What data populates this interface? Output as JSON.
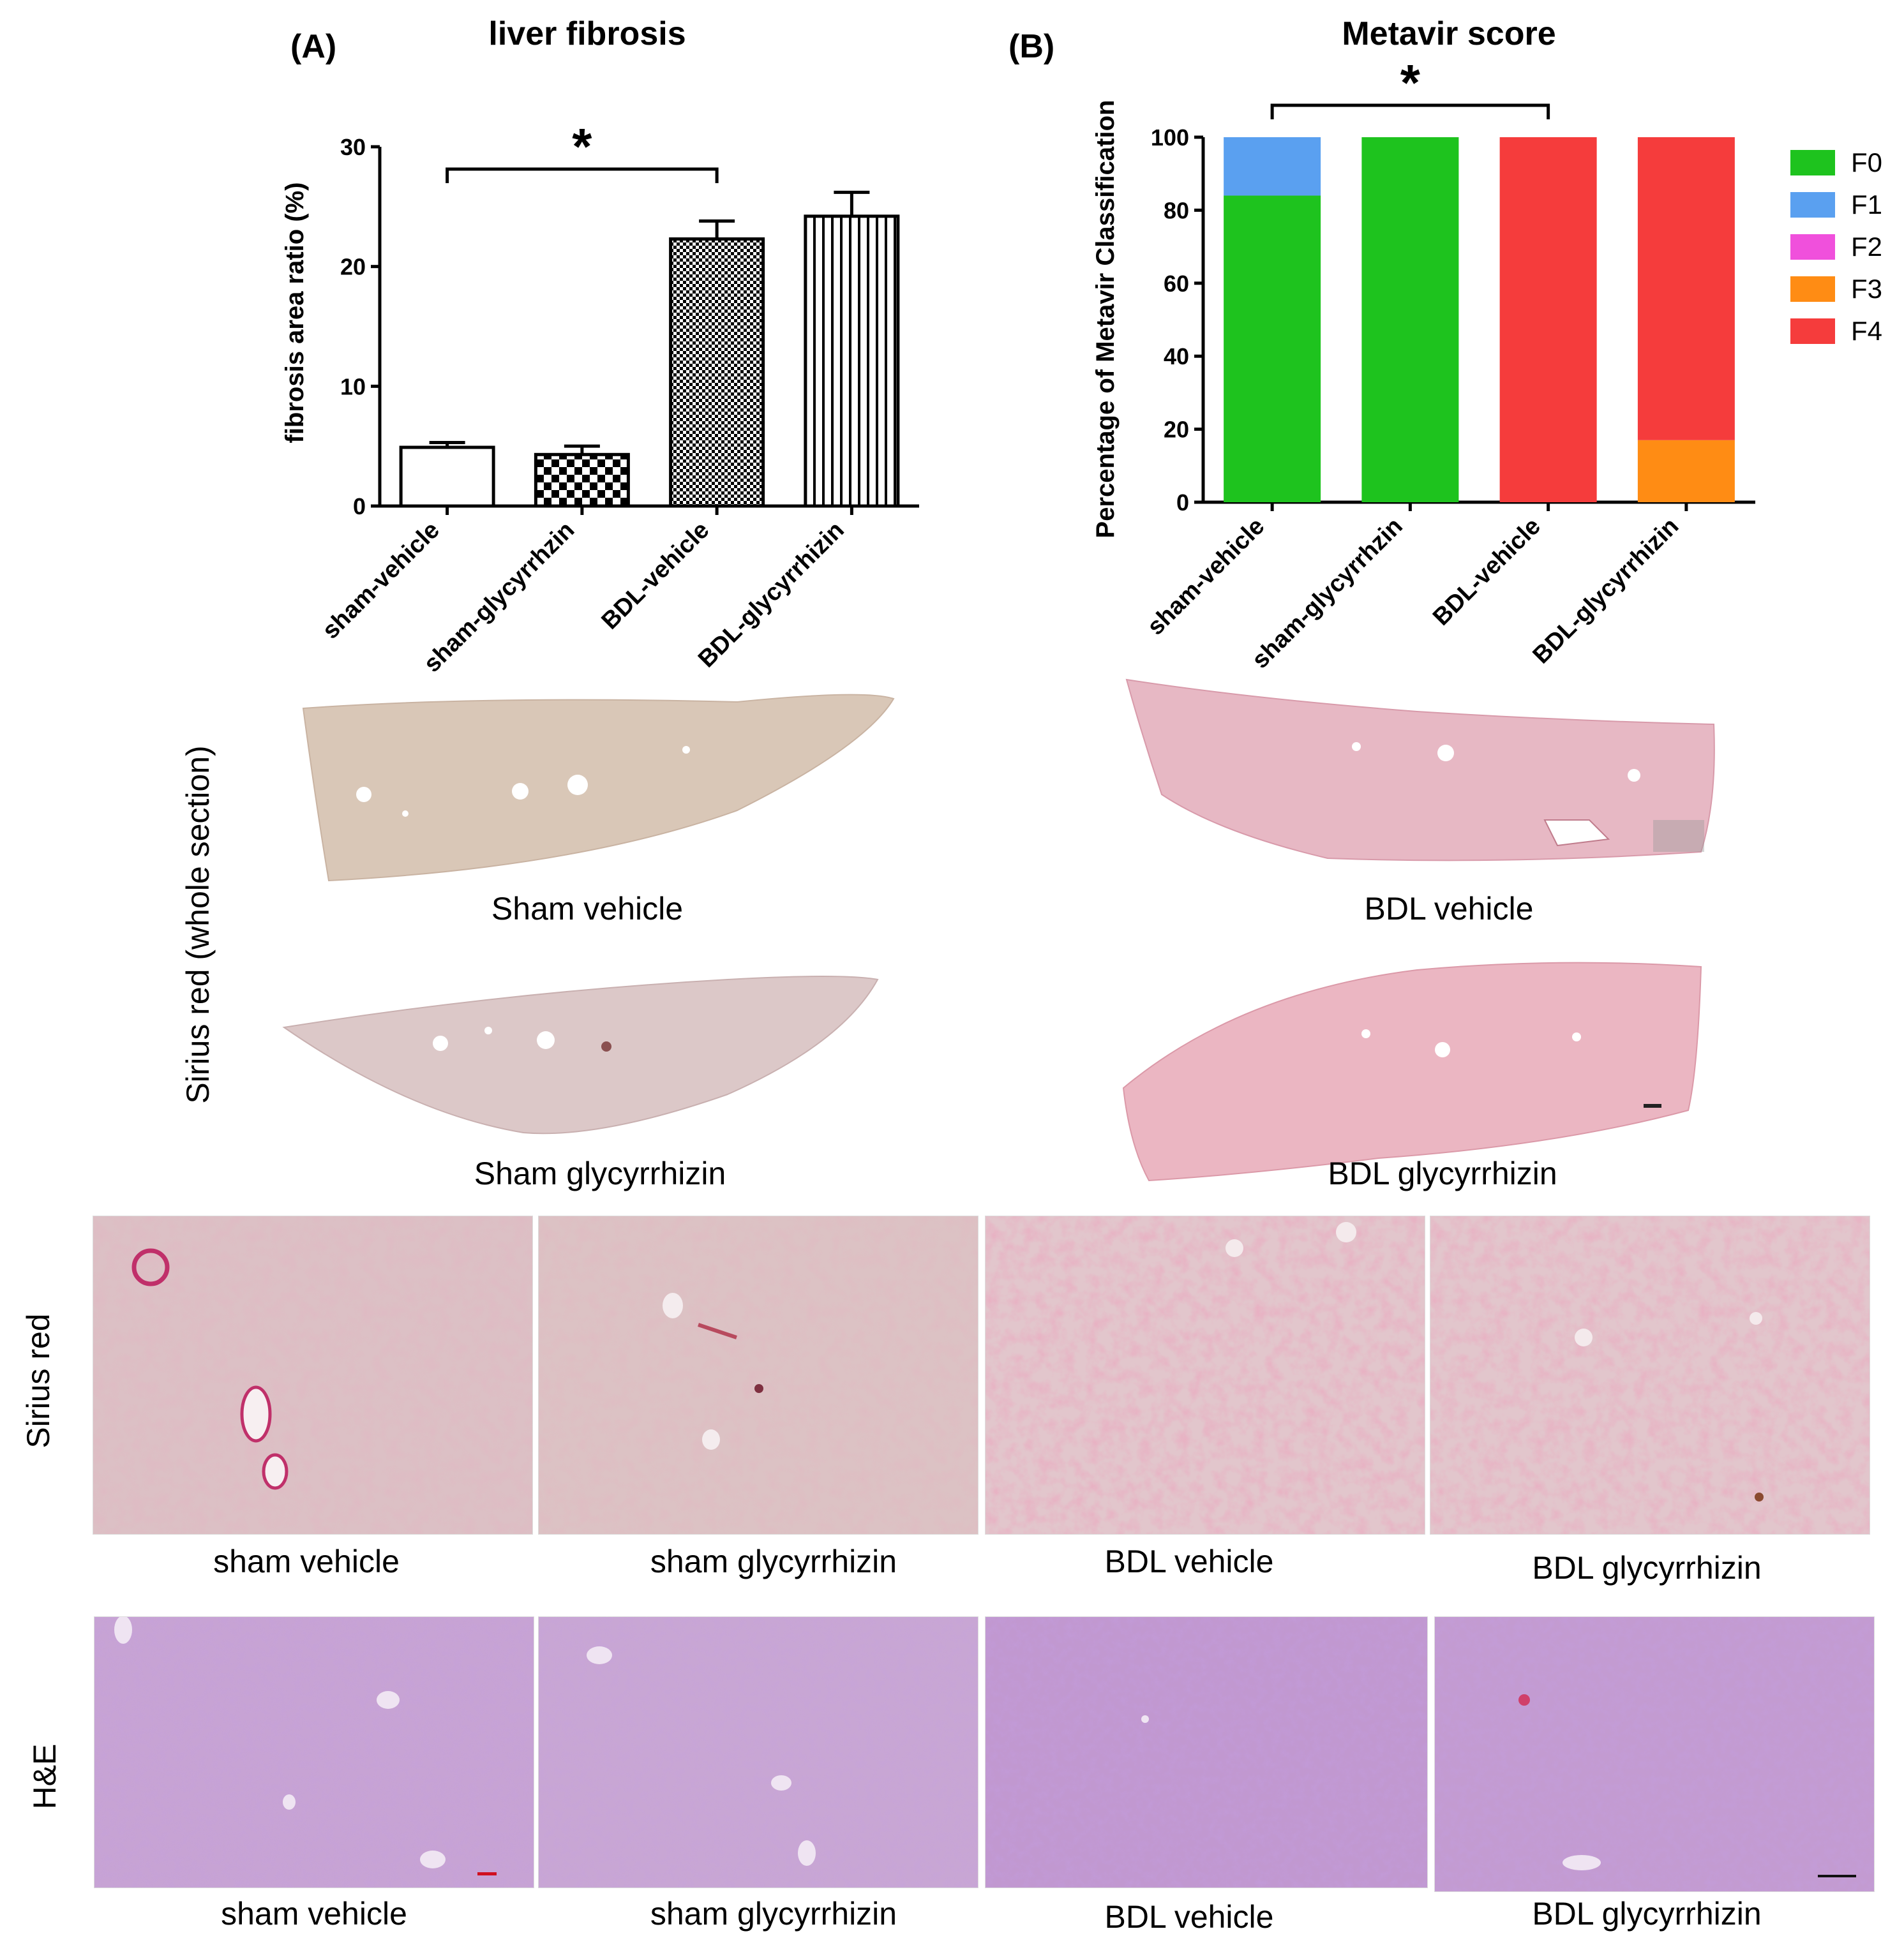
{
  "chart_data": [
    {
      "type": "bar",
      "panel_label": "(A)",
      "title": "liver fibrosis",
      "ylabel": "fibrosis area ratio (%)",
      "xlabel": "",
      "ylim": [
        0,
        30
      ],
      "yticks": [
        0,
        10,
        20,
        30
      ],
      "categories": [
        "sham-vehicle",
        "sham-glycyrrhzin",
        "BDL-vehicle",
        "BDL-glycyrrhizin"
      ],
      "values": [
        4.9,
        4.3,
        22.3,
        24.2
      ],
      "errors": [
        0.4,
        0.7,
        1.5,
        2.0
      ],
      "patterns": [
        "none",
        "checker",
        "fine-checker",
        "vertical-lines"
      ],
      "significance": {
        "from": 0,
        "to": 2,
        "label": "*"
      },
      "grid": false
    },
    {
      "type": "bar",
      "stacked": true,
      "panel_label": "(B)",
      "title": "Metavir score",
      "ylabel": "Percentage of Metavir Classification",
      "xlabel": "",
      "ylim": [
        0,
        100
      ],
      "yticks": [
        0,
        20,
        40,
        60,
        80,
        100
      ],
      "categories": [
        "sham-vehicle",
        "sham-glycyrrhzin",
        "BDL-vehicle",
        "BDL-glycyrrhizin"
      ],
      "series": [
        {
          "name": "F0",
          "color": "#1ec31e",
          "values": [
            84,
            100,
            0,
            0
          ]
        },
        {
          "name": "F1",
          "color": "#5aa0f0",
          "values": [
            16,
            0,
            0,
            0
          ]
        },
        {
          "name": "F2",
          "color": "#f050dc",
          "values": [
            0,
            0,
            0,
            0
          ]
        },
        {
          "name": "F3",
          "color": "#ff8c14",
          "values": [
            0,
            0,
            0,
            17
          ]
        },
        {
          "name": "F4",
          "color": "#f53c3c",
          "values": [
            0,
            0,
            100,
            83
          ]
        }
      ],
      "legend": "right",
      "significance": {
        "from": 0,
        "to": 2,
        "label": "*"
      },
      "grid": false
    }
  ],
  "whole_section": {
    "row_label": "Sirius red (whole section)",
    "captions": [
      "Sham vehicle",
      "BDL vehicle",
      "Sham glycyrrhizin",
      "BDL glycyrrhizin"
    ]
  },
  "sirius_row": {
    "row_label": "Sirius red",
    "captions": [
      "sham vehicle",
      "sham glycyrrhizin",
      "BDL vehicle",
      "BDL glycyrrhizin"
    ]
  },
  "he_row": {
    "row_label": "H&E",
    "captions": [
      "sham vehicle",
      "sham glycyrrhizin",
      "BDL vehicle",
      "BDL glycyrrhizin"
    ]
  }
}
